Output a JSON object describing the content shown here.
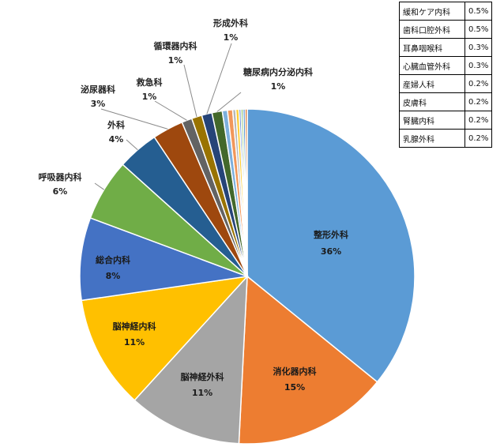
{
  "chart_data": {
    "type": "pie",
    "slices": [
      {
        "name": "整形外科",
        "value": 36,
        "label": "36%",
        "color": "#5b9bd5"
      },
      {
        "name": "消化器内科",
        "value": 15,
        "label": "15%",
        "color": "#ed7d31"
      },
      {
        "name": "脳神経外科",
        "value": 11,
        "label": "11%",
        "color": "#a5a5a5"
      },
      {
        "name": "脳神経内科",
        "value": 11,
        "label": "11%",
        "color": "#ffc000"
      },
      {
        "name": "総合内科",
        "value": 8,
        "label": "8%",
        "color": "#4472c4"
      },
      {
        "name": "呼吸器内科",
        "value": 6,
        "label": "6%",
        "color": "#70ad47"
      },
      {
        "name": "外科",
        "value": 4,
        "label": "4%",
        "color": "#255e91"
      },
      {
        "name": "泌尿器科",
        "value": 3,
        "label": "3%",
        "color": "#9e480e"
      },
      {
        "name": "救急科",
        "value": 1,
        "label": "1%",
        "color": "#636363"
      },
      {
        "name": "循環器内科",
        "value": 1,
        "label": "1%",
        "color": "#997300"
      },
      {
        "name": "形成外科",
        "value": 1,
        "label": "1%",
        "color": "#264478"
      },
      {
        "name": "糖尿病内分泌内科",
        "value": 1,
        "label": "1%",
        "color": "#43682b"
      },
      {
        "name": "緩和ケア内科",
        "value": 0.5,
        "label": "0.5%",
        "color": "#7cafdd"
      },
      {
        "name": "歯科口腔外科",
        "value": 0.5,
        "label": "0.5%",
        "color": "#f1975a"
      },
      {
        "name": "耳鼻咽喉科",
        "value": 0.3,
        "label": "0.3%",
        "color": "#b7b7b7"
      },
      {
        "name": "心臓血管外科",
        "value": 0.3,
        "label": "0.3%",
        "color": "#ffcd33"
      },
      {
        "name": "産婦人科",
        "value": 0.2,
        "label": "0.2%",
        "color": "#698ed0"
      },
      {
        "name": "皮膚科",
        "value": 0.2,
        "label": "0.2%",
        "color": "#8cc168"
      },
      {
        "name": "腎臓内科",
        "value": 0.2,
        "label": "0.2%",
        "color": "#327dc2"
      },
      {
        "name": "乳腺外科",
        "value": 0.2,
        "label": "0.2%",
        "color": "#d26012"
      }
    ],
    "small_table": [
      {
        "name": "緩和ケア内科",
        "pct": "0.5%"
      },
      {
        "name": "歯科口腔外科",
        "pct": "0.5%"
      },
      {
        "name": "耳鼻咽喉科",
        "pct": "0.3%"
      },
      {
        "name": "心臓血管外科",
        "pct": "0.3%"
      },
      {
        "name": "産婦人科",
        "pct": "0.2%"
      },
      {
        "name": "皮膚科",
        "pct": "0.2%"
      },
      {
        "name": "腎臓内科",
        "pct": "0.2%"
      },
      {
        "name": "乳腺外科",
        "pct": "0.2%"
      }
    ]
  }
}
